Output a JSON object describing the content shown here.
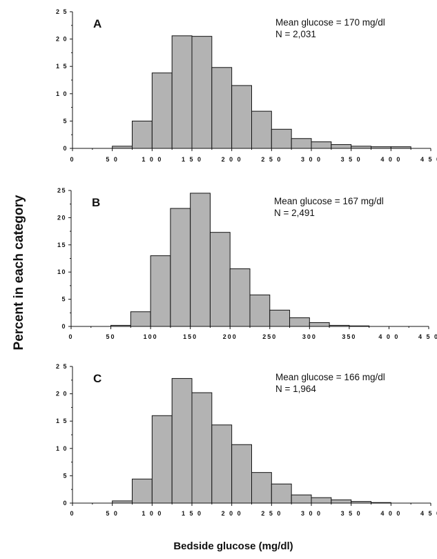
{
  "figure": {
    "ylabel": "Percent in each category",
    "xlabel": "Bedside glucose (mg/dl)"
  },
  "colors": {
    "bar_fill": "#b3b3b3",
    "bar_stroke": "#111111"
  },
  "chart_data": [
    {
      "type": "bar",
      "panel": "A",
      "annotations": [
        "Mean glucose = 170 mg/dl",
        "N = 2,031"
      ],
      "bin_width": 25,
      "bin_starts": [
        25,
        50,
        75,
        100,
        125,
        150,
        175,
        200,
        225,
        250,
        275,
        300,
        325,
        350,
        375,
        400
      ],
      "values": [
        0.0,
        0.4,
        5.0,
        13.8,
        20.6,
        20.5,
        14.8,
        11.5,
        6.8,
        3.5,
        1.8,
        1.2,
        0.7,
        0.4,
        0.3,
        0.3
      ],
      "xlim": [
        0,
        450
      ],
      "ylim": [
        0,
        25
      ],
      "xticks": [
        0,
        50,
        100,
        150,
        200,
        250,
        300,
        350,
        400,
        450
      ],
      "xtick_labels": [
        "0",
        "5 0",
        "1 0 0",
        "1 5 0",
        "2 0 0",
        "2 5 0",
        "3 0 0",
        "3 5 0",
        "4 0 0",
        "4 5 0"
      ],
      "yticks": [
        0,
        5,
        10,
        15,
        20,
        25
      ],
      "ytick_labels": [
        "0",
        "5",
        "1 0",
        "1 5",
        "2 0",
        "2 5"
      ]
    },
    {
      "type": "bar",
      "panel": "B",
      "annotations": [
        "Mean glucose = 167 mg/dl",
        "N = 2,491"
      ],
      "bin_width": 25,
      "bin_starts": [
        25,
        50,
        75,
        100,
        125,
        150,
        175,
        200,
        225,
        250,
        275,
        300,
        325,
        350
      ],
      "values": [
        0.0,
        0.2,
        2.7,
        13.0,
        21.7,
        24.5,
        17.3,
        10.6,
        5.8,
        3.0,
        1.6,
        0.7,
        0.2,
        0.1
      ],
      "xlim": [
        0,
        450
      ],
      "ylim": [
        0,
        25
      ],
      "xticks": [
        0,
        50,
        100,
        150,
        200,
        250,
        300,
        350,
        400,
        450
      ],
      "xtick_labels": [
        "0",
        "50",
        "100",
        "150",
        "200",
        "250",
        "300",
        "350",
        "4 0 0",
        "4 5 0"
      ],
      "yticks": [
        0,
        5,
        10,
        15,
        20,
        25
      ],
      "ytick_labels": [
        "0",
        "5",
        "10",
        "15",
        "20",
        "25"
      ]
    },
    {
      "type": "bar",
      "panel": "C",
      "annotations": [
        "Mean glucose = 166 mg/dl",
        "N = 1,964"
      ],
      "bin_width": 25,
      "bin_starts": [
        25,
        50,
        75,
        100,
        125,
        150,
        175,
        200,
        225,
        250,
        275,
        300,
        325,
        350,
        375
      ],
      "values": [
        0.0,
        0.4,
        4.4,
        16.0,
        22.8,
        20.2,
        14.3,
        10.7,
        5.6,
        3.5,
        1.5,
        1.0,
        0.6,
        0.3,
        0.1
      ],
      "xlim": [
        0,
        450
      ],
      "ylim": [
        0,
        25
      ],
      "xticks": [
        0,
        50,
        100,
        150,
        200,
        250,
        300,
        350,
        400,
        450
      ],
      "xtick_labels": [
        "0",
        "5 0",
        "1 0 0",
        "1 5 0",
        "2 0 0",
        "2 5 0",
        "3 0 0",
        "3 5 0",
        "4 0 0",
        "4 5 0"
      ],
      "yticks": [
        0,
        5,
        10,
        15,
        20,
        25
      ],
      "ytick_labels": [
        "0",
        "5",
        "1 0",
        "1 5",
        "2 0",
        "2 5"
      ]
    }
  ]
}
